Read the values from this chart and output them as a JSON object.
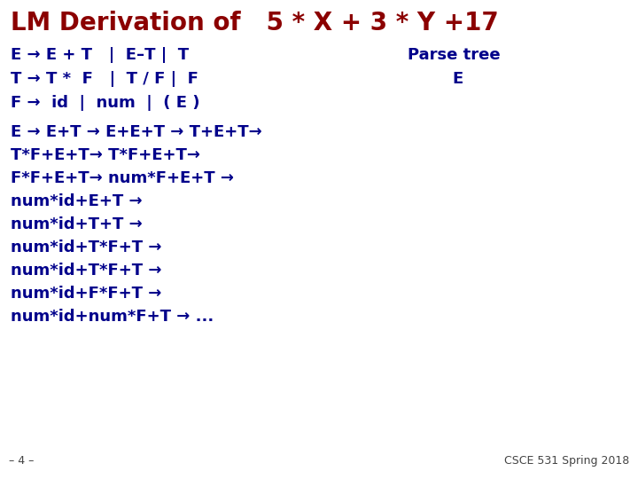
{
  "title": "LM Derivation of   5 * X + 3 * Y +17",
  "title_color": "#8B0000",
  "title_fontsize": 20,
  "bg_color": "#FFFFFF",
  "grammar_color": "#00008B",
  "grammar_lines": [
    "E → E + T   |  E–T |  T",
    "T → T *  F   |  T / F |  F",
    "F →  id  |  num  |  ( E )"
  ],
  "parse_tree_label": "Parse tree",
  "parse_tree_sublabel": "E",
  "parse_tree_color": "#00008B",
  "derivation_lines": [
    "E → E+T → E+E+T → T+E+T→",
    "T*F+E+T→ T*F+E+T→",
    "F*F+E+T→ num*F+E+T →",
    "num*id+E+T →",
    "num*id+T+T →",
    "num*id+T*F+T →",
    "num*id+T*F+T →",
    "num*id+F*F+T →",
    "num*id+num*F+T → ..."
  ],
  "derivation_color": "#00008B",
  "footer_left": "– 4 –",
  "footer_right": "CSCE 531 Spring 2018",
  "footer_color": "#444444",
  "grammar_fontsize": 13,
  "derivation_fontsize": 13,
  "footer_fontsize": 9,
  "parse_tree_fontsize": 13
}
